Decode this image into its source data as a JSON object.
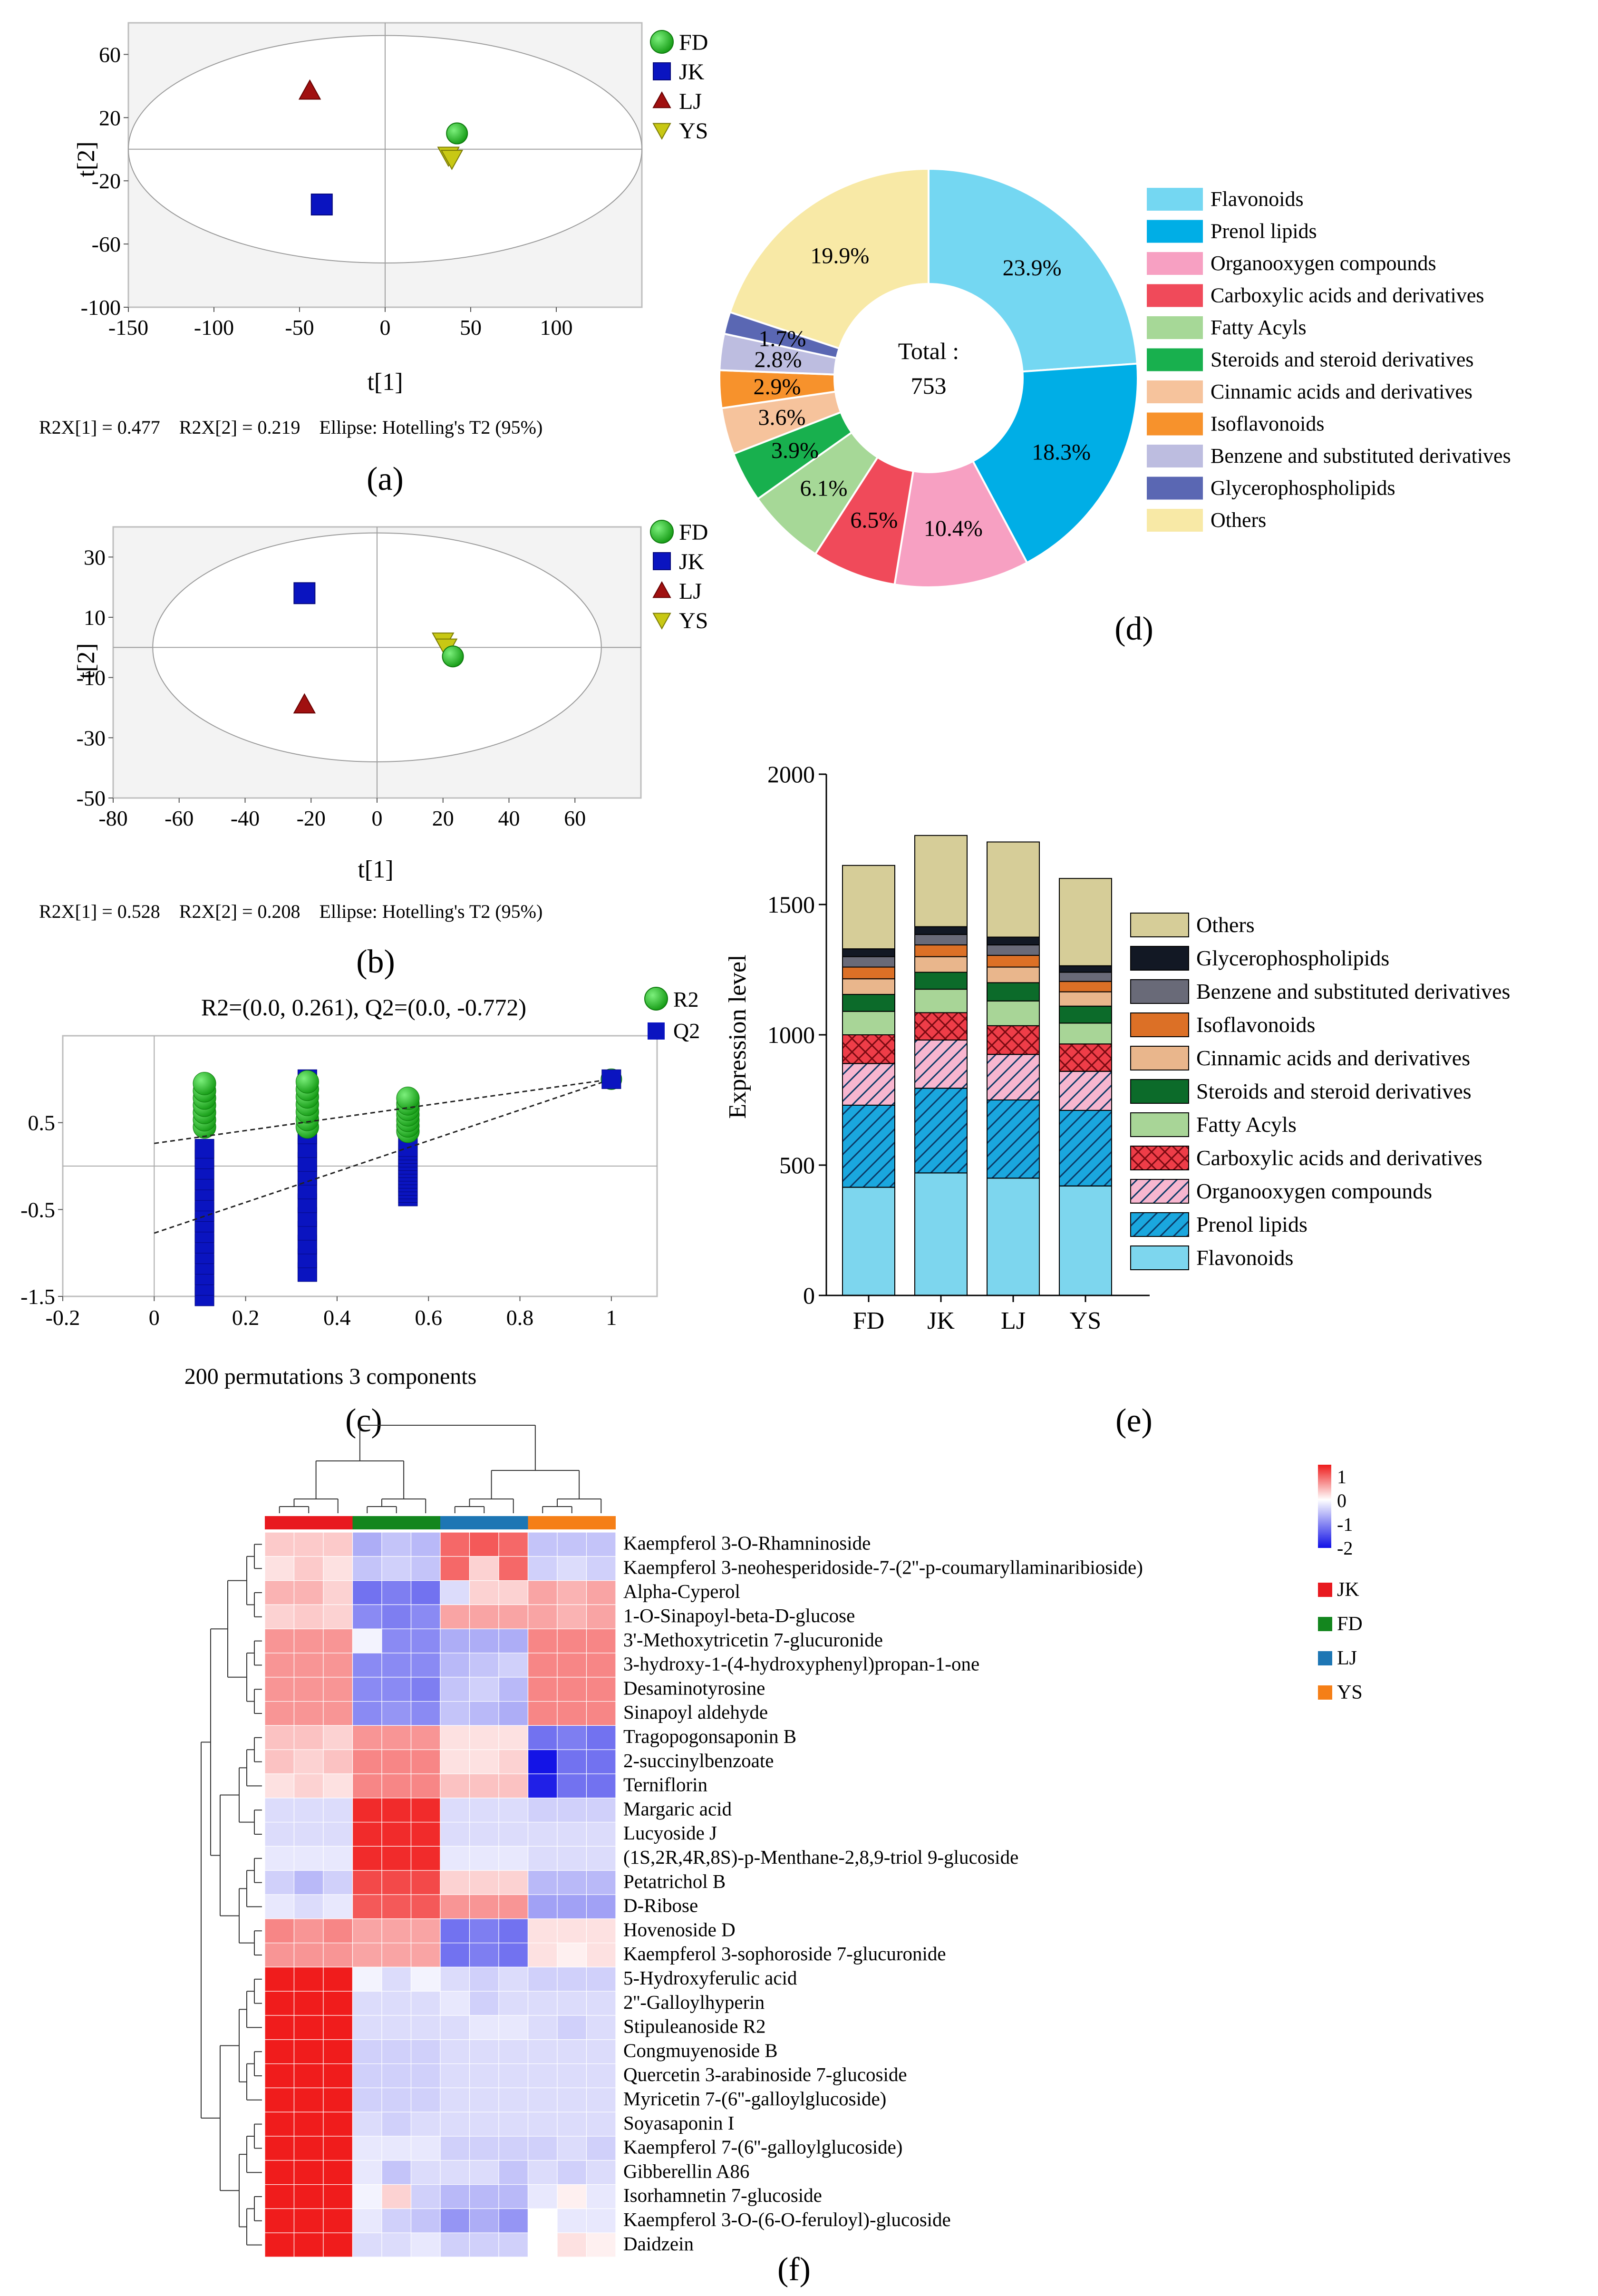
{
  "panel_labels": [
    "(a)",
    "(b)",
    "(c)",
    "(d)",
    "(e)",
    "(f)"
  ],
  "colors": {
    "FD": "#22c422",
    "JK": "#0a14c0",
    "LJ": "#a01010",
    "YS": "#c8c814",
    "R2": "#22c422",
    "Q2": "#0a14c0"
  },
  "chart_data": [
    {
      "id": "a",
      "type": "scatter",
      "xlabel": "t[1]",
      "ylabel": "t[2]",
      "xlim": [
        -150,
        150
      ],
      "ylim": [
        -100,
        80
      ],
      "xticks": [
        -150,
        -100,
        -50,
        0,
        50,
        100
      ],
      "yticks": [
        60,
        20,
        -20,
        -60,
        -100
      ],
      "ellipse": {
        "cx": 0,
        "cy": 0,
        "rx": 150,
        "ry": 72
      },
      "points": [
        {
          "group": "FD",
          "shape": "circle",
          "x": 42,
          "y": 10
        },
        {
          "group": "YS",
          "shape": "triangle-down",
          "x": 37,
          "y": -4
        },
        {
          "group": "YS",
          "shape": "triangle-down",
          "x": 39,
          "y": -6
        },
        {
          "group": "LJ",
          "shape": "triangle-up",
          "x": -44,
          "y": 37
        },
        {
          "group": "JK",
          "shape": "square",
          "x": -37,
          "y": -35
        }
      ],
      "legend": [
        "FD",
        "JK",
        "LJ",
        "YS"
      ],
      "footer": "R2X[1] = 0.477    R2X[2] = 0.219    Ellipse: Hotelling's T2 (95%)"
    },
    {
      "id": "b",
      "type": "scatter",
      "xlabel": "t[1]",
      "ylabel": "t[2]",
      "xlim": [
        -80,
        80
      ],
      "ylim": [
        -50,
        40
      ],
      "xticks": [
        -80,
        -60,
        -40,
        -20,
        0,
        20,
        40,
        60
      ],
      "yticks": [
        30,
        10,
        -10,
        -30,
        -50
      ],
      "ellipse": {
        "cx": 0,
        "cy": 0,
        "rx": 68,
        "ry": 38
      },
      "points": [
        {
          "group": "JK",
          "shape": "square",
          "x": -22,
          "y": 18
        },
        {
          "group": "LJ",
          "shape": "triangle-up",
          "x": -22,
          "y": -19
        },
        {
          "group": "YS",
          "shape": "triangle-down",
          "x": 20,
          "y": 2
        },
        {
          "group": "YS",
          "shape": "triangle-down",
          "x": 21,
          "y": 0
        },
        {
          "group": "FD",
          "shape": "circle",
          "x": 23,
          "y": -3
        }
      ],
      "legend": [
        "FD",
        "JK",
        "LJ",
        "YS"
      ],
      "footer": "R2X[1] = 0.528    R2X[2] = 0.208    Ellipse: Hotelling's T2 (95%)"
    },
    {
      "id": "c",
      "type": "scatter",
      "title": "R2=(0.0, 0.261), Q2=(0.0, -0.772)",
      "xlabel": "200 permutations 3 components",
      "xlim": [
        -0.2,
        1.1
      ],
      "ylim": [
        -1.5,
        1.5
      ],
      "xticks": [
        -0.2,
        0,
        0.2,
        0.4,
        0.6,
        0.8,
        1
      ],
      "yticks": [
        0.5,
        -0.5,
        -1.5
      ],
      "legend": [
        "R2",
        "Q2"
      ],
      "r2_line": {
        "x0": 0,
        "y0": 0.261,
        "x1": 1,
        "y1": 1.0
      },
      "q2_line": {
        "x0": 0,
        "y0": -0.772,
        "x1": 1,
        "y1": 1.0
      },
      "r2_columns": [
        {
          "x": 0.11,
          "ymin": 0.45,
          "ymax": 0.95
        },
        {
          "x": 0.335,
          "ymin": 0.45,
          "ymax": 0.97
        },
        {
          "x": 0.555,
          "ymin": 0.4,
          "ymax": 0.78
        }
      ],
      "q2_columns": [
        {
          "x": 0.11,
          "ymin": -1.5,
          "ymax": 0.2
        },
        {
          "x": 0.335,
          "ymin": -1.22,
          "ymax": 1.0
        },
        {
          "x": 0.555,
          "ymin": -0.35,
          "ymax": 0.22
        }
      ],
      "r2_end": {
        "x": 1,
        "y": 1.0
      },
      "q2_end": {
        "x": 1,
        "y": 1.0
      }
    },
    {
      "id": "d",
      "type": "pie",
      "center_label": "Total :",
      "center_value": "753",
      "slices": [
        {
          "label": "Flavonoids",
          "value": 23.9,
          "text": "23.9%",
          "color": "#74d7f2"
        },
        {
          "label": "Prenol lipids",
          "value": 18.3,
          "text": "18.3%",
          "color": "#00aee6"
        },
        {
          "label": "Organooxygen compounds",
          "value": 10.4,
          "text": "10.4%",
          "color": "#f7a0c2"
        },
        {
          "label": "Carboxylic acids and derivatives",
          "value": 6.5,
          "text": "6.5%",
          "color": "#f04a5a"
        },
        {
          "label": "Fatty Acyls",
          "value": 6.1,
          "text": "6.1%",
          "color": "#a6d897"
        },
        {
          "label": "Steroids and steroid derivatives",
          "value": 3.9,
          "text": "3.9%",
          "color": "#18b04e"
        },
        {
          "label": "Cinnamic acids and derivatives",
          "value": 3.6,
          "text": "3.6%",
          "color": "#f6c39c"
        },
        {
          "label": "Isoflavonoids",
          "value": 2.9,
          "text": "2.9%",
          "color": "#f7922c"
        },
        {
          "label": "Benzene and substituted derivatives",
          "value": 2.8,
          "text": "2.8%",
          "color": "#bdbde0"
        },
        {
          "label": "Glycerophospholipids",
          "value": 1.7,
          "text": "1.7%",
          "color": "#5a67b3"
        },
        {
          "label": "Others",
          "value": 19.9,
          "text": "19.9%",
          "color": "#f8e9a6"
        }
      ]
    },
    {
      "id": "e",
      "type": "bar",
      "stacked": true,
      "ylabel": "Expression level",
      "ylim": [
        0,
        2000
      ],
      "yticks": [
        0,
        500,
        1000,
        1500,
        2000
      ],
      "categories": [
        "FD",
        "JK",
        "LJ",
        "YS"
      ],
      "series": [
        {
          "name": "Flavonoids",
          "color": "#7dd6ee",
          "pattern": "none",
          "values": [
            415,
            470,
            450,
            420
          ]
        },
        {
          "name": "Prenol lipids",
          "color": "#1aa7de",
          "pattern": "diag",
          "values": [
            315,
            325,
            300,
            290
          ]
        },
        {
          "name": "Organooxygen compounds",
          "color": "#f7b6cf",
          "pattern": "diag",
          "values": [
            160,
            185,
            175,
            150
          ]
        },
        {
          "name": "Carboxylic acids and derivatives",
          "color": "#ee3d48",
          "pattern": "cross",
          "values": [
            110,
            105,
            110,
            105
          ]
        },
        {
          "name": "Fatty Acyls",
          "color": "#a8d597",
          "pattern": "none",
          "values": [
            90,
            90,
            95,
            80
          ]
        },
        {
          "name": "Steroids and steroid derivatives",
          "color": "#0c6b2a",
          "pattern": "none",
          "values": [
            65,
            65,
            70,
            65
          ]
        },
        {
          "name": "Cinnamic acids and derivatives",
          "color": "#e9b68c",
          "pattern": "none",
          "values": [
            60,
            60,
            60,
            55
          ]
        },
        {
          "name": "Isoflavonoids",
          "color": "#dc7026",
          "pattern": "none",
          "values": [
            45,
            45,
            45,
            40
          ]
        },
        {
          "name": "Benzene and substituted derivatives",
          "color": "#696a78",
          "pattern": "none",
          "values": [
            40,
            40,
            40,
            35
          ]
        },
        {
          "name": "Glycerophospholipids",
          "color": "#121824",
          "pattern": "none",
          "values": [
            30,
            30,
            30,
            25
          ]
        },
        {
          "name": "Others",
          "color": "#d6cd98",
          "pattern": "none",
          "values": [
            320,
            350,
            365,
            335
          ]
        }
      ],
      "legend_order": [
        "Others",
        "Glycerophospholipids",
        "Benzene and substituted derivatives",
        "Isoflavonoids",
        "Cinnamic acids and derivatives",
        "Steroids and steroid derivatives",
        "Fatty Acyls",
        "Carboxylic acids and derivatives",
        "Organooxygen compounds",
        "Prenol lipids",
        "Flavonoids"
      ]
    },
    {
      "id": "f",
      "type": "heatmap",
      "colorbar": {
        "ticks": [
          "1",
          "0",
          "-1",
          "-2"
        ],
        "min": -2,
        "max": 1.5
      },
      "groups": [
        {
          "name": "JK",
          "color": "#e8191f"
        },
        {
          "name": "FD",
          "color": "#13861e"
        },
        {
          "name": "LJ",
          "color": "#1d76b4"
        },
        {
          "name": "YS",
          "color": "#f57f17"
        }
      ],
      "rows": [
        {
          "name": "Kaempferol 3-O-Rhamninoside",
          "values": [
            0.35,
            0.35,
            0.35,
            -0.7,
            -0.5,
            -0.6,
            1.0,
            1.1,
            1.0,
            -0.5,
            -0.5,
            -0.5
          ]
        },
        {
          "name": "Kaempferol 3-neohesperidoside-7-(2''-p-coumaryllaminaribioside)",
          "values": [
            0.2,
            0.35,
            0.2,
            -0.5,
            -0.4,
            -0.5,
            1.0,
            0.3,
            1.0,
            -0.4,
            -0.3,
            -0.4
          ]
        },
        {
          "name": "Alpha-Cyperol",
          "values": [
            0.5,
            0.5,
            0.3,
            -1.2,
            -1.1,
            -1.2,
            -0.3,
            0.3,
            0.3,
            0.6,
            0.5,
            0.6
          ]
        },
        {
          "name": "1-O-Sinapoyl-beta-D-glucose",
          "values": [
            0.3,
            0.35,
            0.3,
            -1.0,
            -1.1,
            -1.0,
            0.6,
            0.6,
            0.6,
            0.6,
            0.5,
            0.6
          ]
        },
        {
          "name": "3'-Methoxytricetin 7-glucuronide",
          "values": [
            0.7,
            0.7,
            0.7,
            -0.1,
            -1.0,
            -1.0,
            -0.7,
            -0.7,
            -0.7,
            0.8,
            0.8,
            0.8
          ]
        },
        {
          "name": "3-hydroxy-1-(4-hydroxyphenyl)propan-1-one",
          "values": [
            0.7,
            0.7,
            0.7,
            -1.0,
            -1.0,
            -1.0,
            -0.6,
            -0.5,
            -0.4,
            0.8,
            0.8,
            0.8
          ]
        },
        {
          "name": "Desaminotyrosine",
          "values": [
            0.7,
            0.7,
            0.7,
            -1.0,
            -1.0,
            -1.1,
            -0.5,
            -0.4,
            -0.6,
            0.8,
            0.8,
            0.8
          ]
        },
        {
          "name": "Sinapoyl aldehyde",
          "values": [
            0.7,
            0.7,
            0.7,
            -1.0,
            -0.9,
            -1.0,
            -0.5,
            -0.6,
            -0.7,
            0.8,
            0.8,
            0.8
          ]
        },
        {
          "name": "Tragopogonsaponin B",
          "values": [
            0.4,
            0.4,
            0.3,
            0.7,
            0.7,
            0.7,
            0.2,
            0.2,
            0.2,
            -1.2,
            -1.1,
            -1.2
          ]
        },
        {
          "name": "2-succinylbenzoate",
          "values": [
            0.4,
            0.3,
            0.4,
            0.8,
            0.8,
            0.8,
            0.2,
            0.2,
            0.3,
            -2.0,
            -1.2,
            -1.2
          ]
        },
        {
          "name": "Terniflorin",
          "values": [
            0.2,
            0.3,
            0.2,
            0.8,
            0.8,
            0.8,
            0.4,
            0.4,
            0.4,
            -1.9,
            -1.2,
            -1.2
          ]
        },
        {
          "name": "Margaric acid",
          "values": [
            -0.3,
            -0.3,
            -0.3,
            1.4,
            1.4,
            1.4,
            -0.3,
            -0.3,
            -0.3,
            -0.4,
            -0.4,
            -0.4
          ]
        },
        {
          "name": "Lucyoside J",
          "values": [
            -0.3,
            -0.3,
            -0.3,
            1.4,
            1.4,
            1.4,
            -0.3,
            -0.3,
            -0.3,
            -0.3,
            -0.3,
            -0.3
          ]
        },
        {
          "name": "(1S,2R,4R,8S)-p-Menthane-2,8,9-triol 9-glucoside",
          "values": [
            -0.2,
            -0.2,
            -0.2,
            1.4,
            1.4,
            1.4,
            -0.2,
            -0.2,
            -0.2,
            -0.3,
            -0.3,
            -0.3
          ]
        },
        {
          "name": "Petatrichol B",
          "values": [
            -0.4,
            -0.6,
            -0.4,
            1.2,
            1.2,
            1.2,
            0.3,
            0.3,
            0.3,
            -0.6,
            -0.6,
            -0.6
          ]
        },
        {
          "name": "D-Ribose",
          "values": [
            -0.2,
            -0.3,
            -0.2,
            1.1,
            1.1,
            1.1,
            0.7,
            0.7,
            0.7,
            -0.8,
            -0.8,
            -0.8
          ]
        },
        {
          "name": "Hovenoside D",
          "values": [
            0.8,
            0.7,
            0.8,
            0.6,
            0.6,
            0.6,
            -1.2,
            -1.1,
            -1.2,
            0.2,
            0.2,
            0.2
          ]
        },
        {
          "name": "Kaempferol 3-sophoroside 7-glucuronide",
          "values": [
            0.7,
            0.7,
            0.7,
            0.6,
            0.6,
            0.6,
            -1.2,
            -1.1,
            -1.2,
            0.2,
            0.1,
            0.2
          ]
        },
        {
          "name": "5-Hydroxyferulic acid",
          "values": [
            1.5,
            1.5,
            1.5,
            -0.1,
            -0.3,
            -0.1,
            -0.3,
            -0.4,
            -0.3,
            -0.4,
            -0.4,
            -0.4
          ]
        },
        {
          "name": "2''-Galloylhyperin",
          "values": [
            1.5,
            1.5,
            1.5,
            -0.3,
            -0.3,
            -0.3,
            -0.2,
            -0.4,
            -0.3,
            -0.3,
            -0.3,
            -0.3
          ]
        },
        {
          "name": "Stipuleanoside R2",
          "values": [
            1.5,
            1.5,
            1.5,
            -0.3,
            -0.3,
            -0.3,
            -0.3,
            -0.2,
            -0.2,
            -0.3,
            -0.4,
            -0.3
          ]
        },
        {
          "name": "Congmuyenoside B",
          "values": [
            1.5,
            1.5,
            1.5,
            -0.4,
            -0.4,
            -0.4,
            -0.3,
            -0.3,
            -0.3,
            -0.3,
            -0.3,
            -0.3
          ]
        },
        {
          "name": "Quercetin 3-arabinoside 7-glucoside",
          "values": [
            1.5,
            1.5,
            1.5,
            -0.4,
            -0.4,
            -0.4,
            -0.3,
            -0.3,
            -0.3,
            -0.3,
            -0.3,
            -0.3
          ]
        },
        {
          "name": "Myricetin 7-(6''-galloylglucoside)",
          "values": [
            1.5,
            1.5,
            1.5,
            -0.4,
            -0.4,
            -0.4,
            -0.3,
            -0.3,
            -0.3,
            -0.3,
            -0.3,
            -0.3
          ]
        },
        {
          "name": "Soyasaponin I",
          "values": [
            1.5,
            1.5,
            1.5,
            -0.3,
            -0.4,
            -0.3,
            -0.3,
            -0.3,
            -0.3,
            -0.3,
            -0.3,
            -0.3
          ]
        },
        {
          "name": "Kaempferol 7-(6''-galloylglucoside)",
          "values": [
            1.5,
            1.5,
            1.5,
            -0.2,
            -0.2,
            -0.2,
            -0.4,
            -0.4,
            -0.4,
            -0.4,
            -0.3,
            -0.4
          ]
        },
        {
          "name": "Gibberellin A86",
          "values": [
            1.5,
            1.5,
            1.5,
            -0.2,
            -0.5,
            -0.3,
            -0.3,
            -0.3,
            -0.5,
            -0.3,
            -0.4,
            -0.3
          ]
        },
        {
          "name": "Isorhamnetin 7-glucoside",
          "values": [
            1.5,
            1.5,
            1.5,
            -0.1,
            0.3,
            -0.4,
            -0.6,
            -0.6,
            -0.6,
            -0.2,
            0.1,
            -0.2
          ]
        },
        {
          "name": "Kaempferol 3-O-(6-O-feruloyl)-glucoside",
          "values": [
            1.5,
            1.5,
            1.5,
            -0.2,
            -0.4,
            -0.5,
            -0.9,
            -0.7,
            -0.9,
            0.0,
            -0.2,
            -0.2
          ]
        },
        {
          "name": "Daidzein",
          "values": [
            1.5,
            1.5,
            1.5,
            -0.3,
            -0.3,
            -0.2,
            -0.4,
            -0.4,
            -0.4,
            0.0,
            0.2,
            0.1
          ]
        }
      ]
    }
  ]
}
